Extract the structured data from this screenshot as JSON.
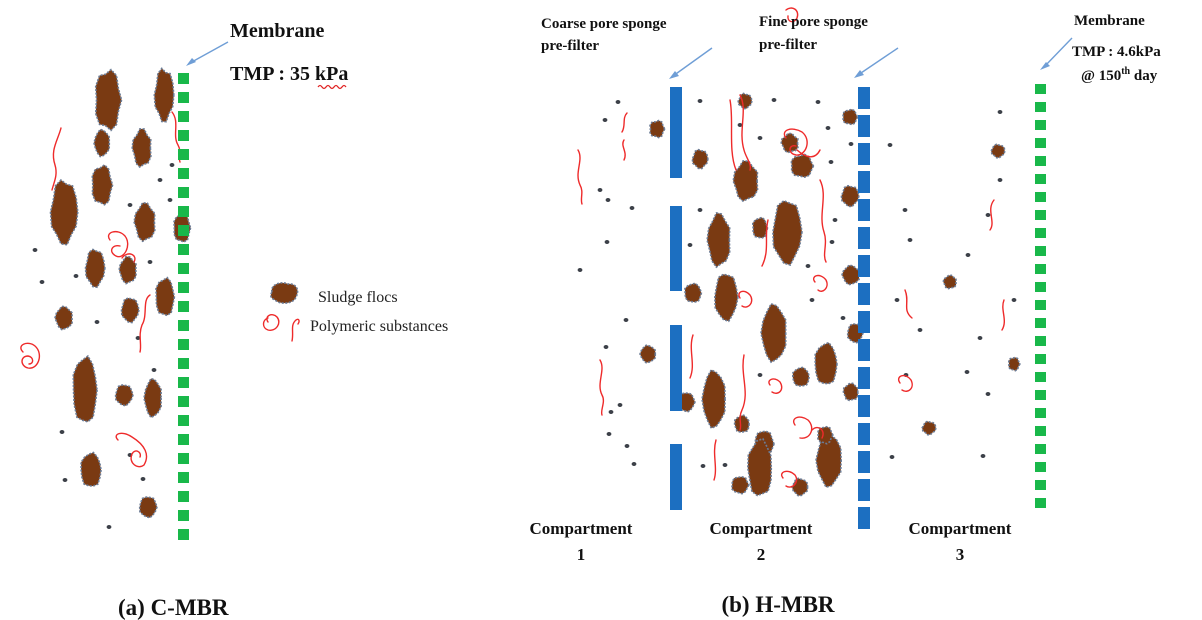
{
  "panel_a": {
    "membrane_label": "Membrane",
    "tmp_prefix": "TMP : 35 ",
    "tmp_unit": "kPa",
    "caption": "(a) C-MBR"
  },
  "legend": {
    "sludge_label": "Sludge flocs",
    "eps_label": "Polymeric substances"
  },
  "panel_b": {
    "coarse_label_line1": "Coarse pore sponge",
    "coarse_label_line2": "pre-filter",
    "fine_label_line1": "Fine pore sponge",
    "fine_label_line2": "pre-filter",
    "membrane_label": "Membrane",
    "tmp_label": "TMP : 4.6kPa",
    "day_prefix": "@ 150",
    "day_sup": "th",
    "day_suffix": " day",
    "compartments": [
      {
        "word": "Compartment",
        "number": "1"
      },
      {
        "word": "Compartment",
        "number": "2"
      },
      {
        "word": "Compartment",
        "number": "3"
      }
    ],
    "caption": "(b) H-MBR"
  },
  "colors": {
    "sludge_floc": "#7a3a12",
    "polymeric_substance": "#ee2b2b",
    "membrane": "#19b84a",
    "sponge_prefilter": "#1c6fc1",
    "pointer_arrow": "#6f9ed6"
  }
}
